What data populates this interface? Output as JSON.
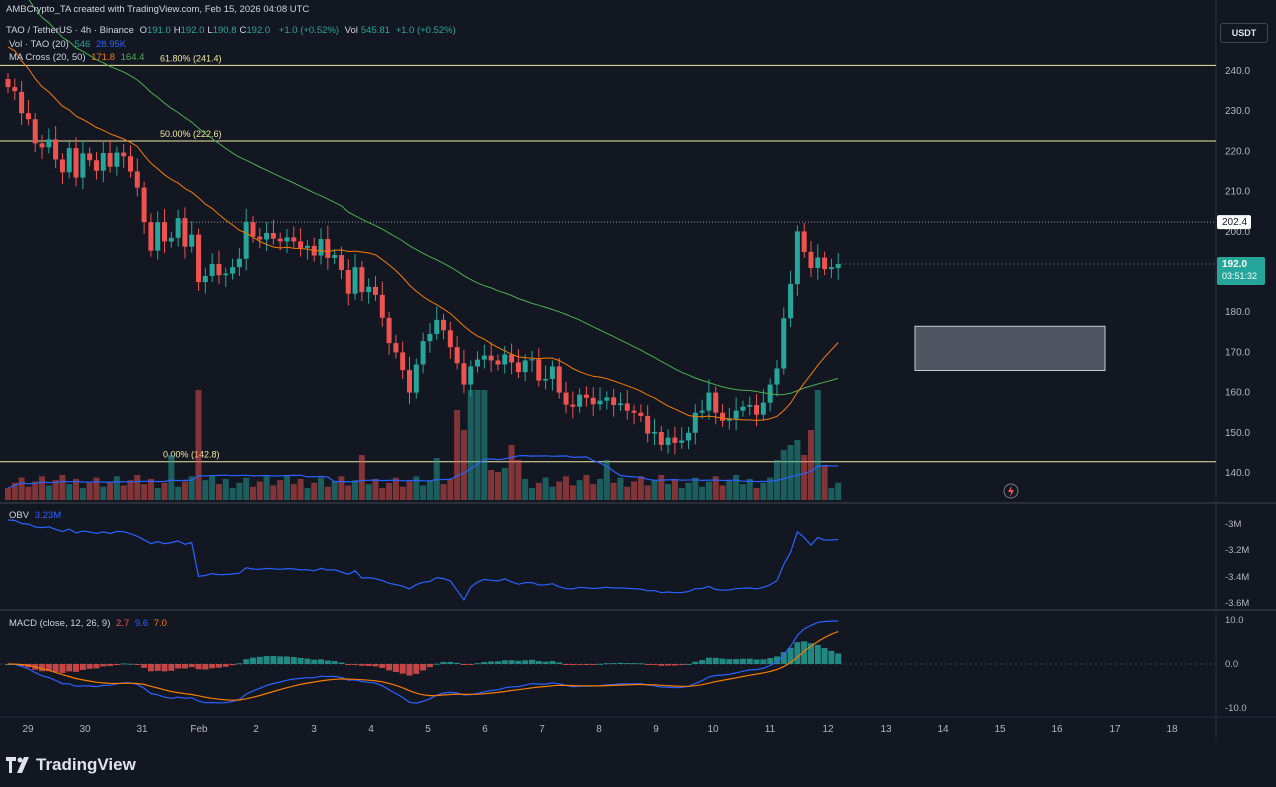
{
  "credit": "AMBCrypto_TA created with TradingView.com, Feb 15, 2026 04:08 UTC",
  "currency": "USDT",
  "brand": "TradingView",
  "header": {
    "symbol": "TAO / TetherUS · 4h · Binance",
    "ohlc": [
      {
        "k": "O",
        "v": "191.0"
      },
      {
        "k": "H",
        "v": "192.0"
      },
      {
        "k": "L",
        "v": "190.8"
      },
      {
        "k": "C",
        "v": "192.0"
      }
    ],
    "change": "+1.0 (+0.52%)",
    "vol_label": "Vol",
    "vol_value": "545.81",
    "vol_change": "+1.0 (+0.52%)",
    "vol_ind": {
      "label": "Vol · TAO (20)",
      "v1": "546",
      "v2": "28.95K"
    },
    "ma_cross": {
      "label": "MA Cross (20, 50)",
      "v1": "171.8",
      "v2": "164.4"
    },
    "obv": {
      "label": "OBV",
      "v": "3.23M"
    },
    "macd": {
      "label": "MACD (close, 12, 26, 9)",
      "v1": "2.7",
      "v2": "9.6",
      "v3": "7.0"
    }
  },
  "colors": {
    "up": "#26a69a",
    "down": "#ef5350",
    "ma20": "#f57c00",
    "ma50": "#4caf50",
    "blue": "#2962ff",
    "fib": "#f0e8a0",
    "bg": "#131722"
  },
  "chart_data": {
    "type": "candlestick",
    "interval": "4h",
    "price_axis": {
      "ticks": [
        "240.0",
        "230.0",
        "220.0",
        "210.0",
        "200.0",
        "190.0",
        "180.0",
        "170.0",
        "160.0",
        "150.0",
        "140.0"
      ],
      "range": [
        134,
        247
      ]
    },
    "time_axis": {
      "labels": [
        "29",
        "30",
        "31",
        "Feb",
        "2",
        "3",
        "4",
        "5",
        "6",
        "7",
        "8",
        "9",
        "10",
        "11",
        "12",
        "13",
        "14",
        "15",
        "16",
        "17",
        "18"
      ]
    },
    "fib_levels": [
      {
        "label": "61.80% (241.4)",
        "price": 241.4
      },
      {
        "label": "50.00% (222.6)",
        "price": 222.6
      },
      {
        "label": "0.00% (142.8)",
        "price": 142.8
      }
    ],
    "labels": {
      "last_price": "192.0",
      "countdown": "03:51:32",
      "marker": "202.4"
    },
    "marker_price": 202.4,
    "zone": {
      "top": 176.5,
      "bottom": 165.5
    },
    "candles_c": [
      236,
      235,
      229.5,
      228,
      222,
      221,
      223,
      218,
      214.8,
      220.8,
      213.5,
      219.5,
      217.8,
      215.2,
      219.6,
      216.2,
      219.7,
      218.8,
      215,
      211,
      202.4,
      195.3,
      202.4,
      197.6,
      198.5,
      203.4,
      196.3,
      199.3,
      187.5,
      189,
      192,
      189.2,
      189.6,
      191.2,
      193.3,
      202.4,
      198.8,
      198.1,
      199.7,
      198.3,
      197.6,
      198.6,
      197.6,
      196,
      196.5,
      194.1,
      198.2,
      193.5,
      194.2,
      190.5,
      184.6,
      191.2,
      185,
      186.3,
      184.3,
      178.6,
      172.3,
      170,
      165.6,
      160,
      167,
      172.8,
      174.6,
      178.1,
      175.5,
      171.3,
      167.3,
      162,
      166.5,
      168.2,
      169.2,
      168,
      167,
      169.5,
      167.5,
      165.1,
      168,
      168.3,
      163,
      163.4,
      166.5,
      160,
      157,
      156.5,
      159.5,
      158.7,
      157.1,
      158,
      158.8,
      156.9,
      157.3,
      155.5,
      155,
      154.2,
      149.8,
      150.2,
      147,
      148.8,
      147.5,
      148.1,
      150,
      155,
      155.5,
      160,
      155,
      153,
      153.5,
      155.5,
      156.5,
      156.9,
      154.5,
      157.5,
      162,
      166,
      178.5,
      187,
      200.1,
      195,
      191,
      193.6,
      190.7,
      191.2,
      192
    ],
    "candles_o": [
      238,
      236,
      234.8,
      229.5,
      228,
      222,
      221,
      223,
      218,
      214.8,
      220.8,
      213.5,
      219.5,
      217.8,
      215.2,
      219.6,
      216.2,
      219.7,
      218.8,
      215,
      211,
      202.4,
      195.3,
      202.4,
      197.6,
      198.5,
      203.4,
      196.3,
      199.3,
      187.5,
      189,
      192,
      189.2,
      189.6,
      191.2,
      193.3,
      202.4,
      198.8,
      198.1,
      199.7,
      198.3,
      197.6,
      198.6,
      197.6,
      196,
      196.5,
      194.1,
      198.2,
      193.5,
      194.2,
      190.5,
      184.6,
      191.2,
      185,
      186.3,
      184.3,
      178.6,
      172.3,
      170,
      165.6,
      160,
      167,
      172.8,
      174.6,
      178.1,
      175.5,
      171.3,
      167.3,
      162,
      166.5,
      168.2,
      169.2,
      168,
      167,
      169.5,
      167.5,
      165.1,
      168,
      168.3,
      163,
      163.4,
      166.5,
      160,
      157,
      156.5,
      159.5,
      158.7,
      157.1,
      158,
      158.8,
      156.9,
      157.3,
      155.5,
      155,
      154.2,
      149.8,
      150.2,
      147,
      148.8,
      147.5,
      148.1,
      150,
      155,
      155.5,
      160,
      155,
      153,
      153.5,
      155.5,
      156.5,
      156.9,
      154.5,
      157.5,
      162,
      166,
      178.5,
      187,
      200.1,
      195,
      191,
      193.6,
      190.7,
      191
    ]
  }
}
